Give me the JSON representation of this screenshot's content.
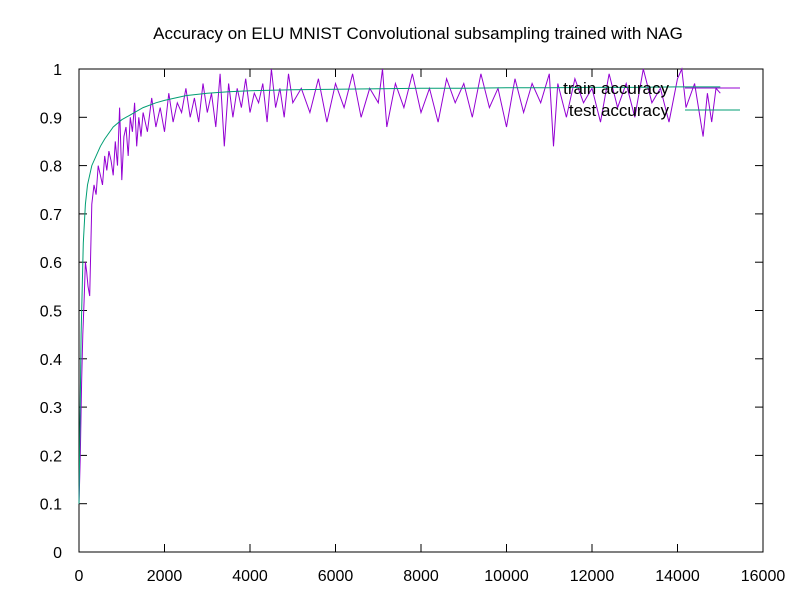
{
  "chart_data": {
    "type": "line",
    "title": "Accuracy on ELU MNIST Convolutional subsampling trained with NAG",
    "xlabel": "",
    "ylabel": "",
    "xlim": [
      0,
      16000
    ],
    "ylim": [
      0,
      1
    ],
    "x_ticks": [
      0,
      2000,
      4000,
      6000,
      8000,
      10000,
      12000,
      14000,
      16000
    ],
    "y_ticks": [
      0,
      0.1,
      0.2,
      0.3,
      0.4,
      0.5,
      0.6,
      0.7,
      0.8,
      0.9,
      1
    ],
    "x_tick_labels": [
      "0",
      "2000",
      "4000",
      "6000",
      "8000",
      "10000",
      "12000",
      "14000",
      "16000"
    ],
    "y_tick_labels": [
      "0",
      "0.1",
      "0.2",
      "0.3",
      "0.4",
      "0.5",
      "0.6",
      "0.7",
      "0.8",
      "0.9",
      "1"
    ],
    "grid": false,
    "legend_position": "top-right",
    "series": [
      {
        "name": "train accuracy",
        "color": "#9400d3",
        "x": [
          0,
          30,
          60,
          90,
          120,
          150,
          180,
          210,
          250,
          300,
          350,
          400,
          450,
          500,
          550,
          600,
          650,
          700,
          750,
          800,
          850,
          900,
          950,
          1000,
          1050,
          1100,
          1150,
          1200,
          1250,
          1300,
          1350,
          1400,
          1450,
          1500,
          1600,
          1700,
          1800,
          1900,
          2000,
          2100,
          2200,
          2300,
          2400,
          2500,
          2600,
          2700,
          2800,
          2900,
          3000,
          3100,
          3200,
          3300,
          3400,
          3500,
          3600,
          3700,
          3800,
          3900,
          4000,
          4100,
          4200,
          4300,
          4400,
          4500,
          4600,
          4700,
          4800,
          4900,
          5000,
          5200,
          5400,
          5600,
          5800,
          6000,
          6200,
          6400,
          6600,
          6800,
          7000,
          7100,
          7200,
          7400,
          7600,
          7800,
          8000,
          8200,
          8400,
          8600,
          8800,
          9000,
          9200,
          9400,
          9600,
          9800,
          10000,
          10200,
          10400,
          10600,
          10800,
          11000,
          11100,
          11200,
          11400,
          11600,
          11800,
          12000,
          12200,
          12400,
          12600,
          12800,
          13000,
          13200,
          13400,
          13600,
          13800,
          14000,
          14100,
          14200,
          14400,
          14600,
          14700,
          14800,
          14900,
          15000
        ],
        "values": [
          0.1,
          0.2,
          0.35,
          0.45,
          0.52,
          0.6,
          0.58,
          0.55,
          0.53,
          0.72,
          0.76,
          0.74,
          0.8,
          0.78,
          0.76,
          0.82,
          0.79,
          0.83,
          0.81,
          0.78,
          0.85,
          0.8,
          0.92,
          0.77,
          0.86,
          0.88,
          0.82,
          0.9,
          0.87,
          0.93,
          0.84,
          0.9,
          0.86,
          0.91,
          0.87,
          0.94,
          0.88,
          0.92,
          0.87,
          0.95,
          0.89,
          0.93,
          0.91,
          0.96,
          0.9,
          0.94,
          0.89,
          0.97,
          0.91,
          0.95,
          0.88,
          0.99,
          0.84,
          0.97,
          0.9,
          0.96,
          0.92,
          0.98,
          0.91,
          0.95,
          0.93,
          0.97,
          0.89,
          1.0,
          0.92,
          0.96,
          0.9,
          0.99,
          0.93,
          0.96,
          0.91,
          0.98,
          0.89,
          0.97,
          0.92,
          0.99,
          0.9,
          0.96,
          0.93,
          1.0,
          0.88,
          0.97,
          0.92,
          0.99,
          0.91,
          0.96,
          0.89,
          0.98,
          0.93,
          0.97,
          0.9,
          0.99,
          0.92,
          0.96,
          0.88,
          0.98,
          0.91,
          0.97,
          0.93,
          0.99,
          0.84,
          0.97,
          0.9,
          0.98,
          0.93,
          0.96,
          0.89,
          0.99,
          0.92,
          0.97,
          0.9,
          1.0,
          0.93,
          0.96,
          0.89,
          0.98,
          1.0,
          0.92,
          0.97,
          0.86,
          0.95,
          0.89,
          0.96,
          0.95
        ]
      },
      {
        "name": "test accuracy",
        "color": "#009e73",
        "x": [
          0,
          50,
          100,
          150,
          200,
          300,
          400,
          500,
          600,
          800,
          1000,
          1200,
          1500,
          1800,
          2000,
          2500,
          3000,
          3500,
          4000,
          4500,
          5000,
          6000,
          7000,
          8000,
          9000,
          10000,
          11000,
          12000,
          13000,
          14000,
          15000
        ],
        "values": [
          0.1,
          0.45,
          0.64,
          0.72,
          0.76,
          0.8,
          0.82,
          0.84,
          0.855,
          0.88,
          0.895,
          0.905,
          0.92,
          0.93,
          0.935,
          0.945,
          0.95,
          0.953,
          0.955,
          0.956,
          0.957,
          0.958,
          0.959,
          0.96,
          0.96,
          0.961,
          0.961,
          0.962,
          0.962,
          0.963,
          0.963
        ]
      }
    ]
  }
}
